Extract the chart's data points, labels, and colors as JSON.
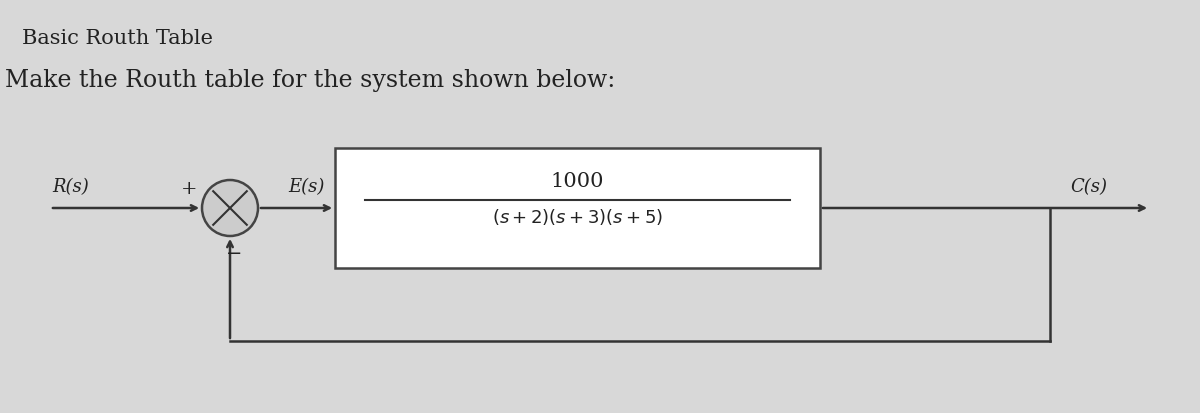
{
  "title": "Basic Routh Table",
  "subtitle": "Make the Routh table for the system shown below:",
  "background_color": "#d8d8d8",
  "transfer_func_num": "1000",
  "transfer_func_den": "( s + 2)( s + 3)( s + 5)",
  "label_Rs": "R(s)",
  "label_Es": "E(s)",
  "label_Cs": "C(s)",
  "label_plus": "+",
  "label_minus": "−",
  "box_color": "#ffffff",
  "box_edge_color": "#444444",
  "line_color": "#333333",
  "circle_color": "#cccccc",
  "text_color": "#222222",
  "title_fontsize": 15,
  "subtitle_fontsize": 17,
  "label_fontsize": 13,
  "tf_num_fontsize": 15,
  "tf_den_fontsize": 13
}
